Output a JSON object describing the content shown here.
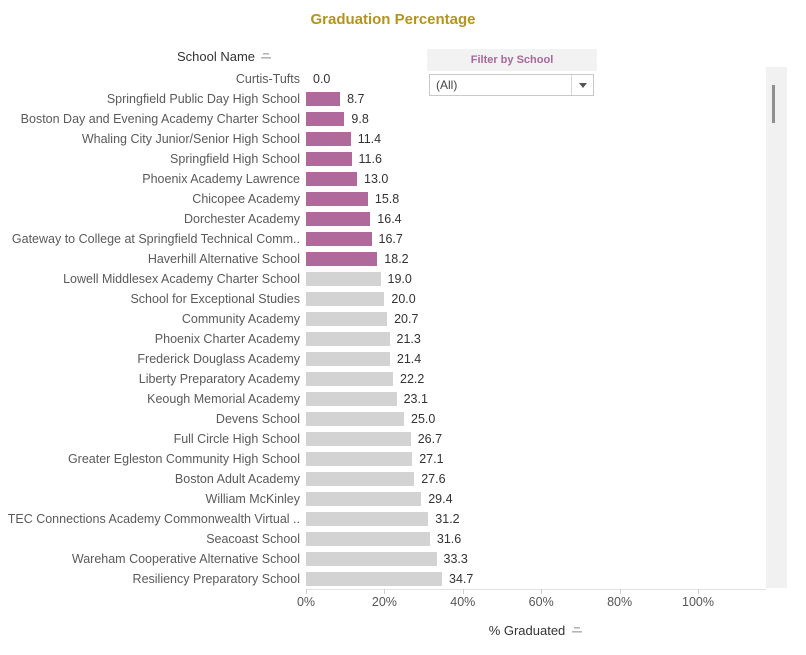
{
  "title": "Graduation Percentage",
  "row_header": "School Name",
  "filter": {
    "title": "Filter by School",
    "selected_value": "(All)"
  },
  "x_axis": {
    "label": "% Graduated",
    "ticks": [
      "0%",
      "20%",
      "40%",
      "60%",
      "80%",
      "100%"
    ]
  },
  "colors": {
    "title_text": "#b3941f",
    "filter_title_text": "#a8689a",
    "bar_highlight": "#b0699b",
    "bar_default": "#d3d3d3",
    "label_text": "#5a5a5a",
    "value_text": "#333333",
    "axis_text": "#555555",
    "filter_panel_bg": "#f2f2f2"
  },
  "chart_data": {
    "type": "bar",
    "orientation": "horizontal",
    "title": "Graduation Percentage",
    "xlabel": "% Graduated",
    "ylabel": "School Name",
    "xlim": [
      0,
      100
    ],
    "x_tick_values": [
      0,
      20,
      40,
      60,
      80,
      100
    ],
    "grid": false,
    "legend": "none",
    "value_label_format": "one-decimal",
    "categories": [
      "Curtis-Tufts",
      "Springfield Public Day High School",
      "Boston Day and Evening Academy Charter School",
      "Whaling City Junior/Senior High School",
      "Springfield High School",
      "Phoenix Academy Lawrence",
      "Chicopee Academy",
      "Dorchester Academy",
      "Gateway to College at Springfield Technical Comm..",
      "Haverhill Alternative School",
      "Lowell Middlesex Academy Charter School",
      "School for Exceptional Studies",
      "Community Academy",
      "Phoenix Charter Academy",
      "Frederick Douglass Academy",
      "Liberty Preparatory Academy",
      "Keough Memorial Academy",
      "Devens School",
      "Full Circle High School",
      "Greater Egleston Community High School",
      "Boston Adult Academy",
      "William McKinley",
      "TEC Connections Academy Commonwealth Virtual ..",
      "Seacoast School",
      "Wareham Cooperative Alternative School",
      "Resiliency Preparatory School"
    ],
    "values": [
      0.0,
      8.7,
      9.8,
      11.4,
      11.6,
      13.0,
      15.8,
      16.4,
      16.7,
      18.2,
      19.0,
      20.0,
      20.7,
      21.3,
      21.4,
      22.2,
      23.1,
      25.0,
      26.7,
      27.1,
      27.6,
      29.4,
      31.2,
      31.6,
      33.3,
      34.7
    ],
    "highlighted": [
      true,
      true,
      true,
      true,
      true,
      true,
      true,
      true,
      true,
      true,
      false,
      false,
      false,
      false,
      false,
      false,
      false,
      false,
      false,
      false,
      false,
      false,
      false,
      false,
      false,
      false
    ]
  }
}
